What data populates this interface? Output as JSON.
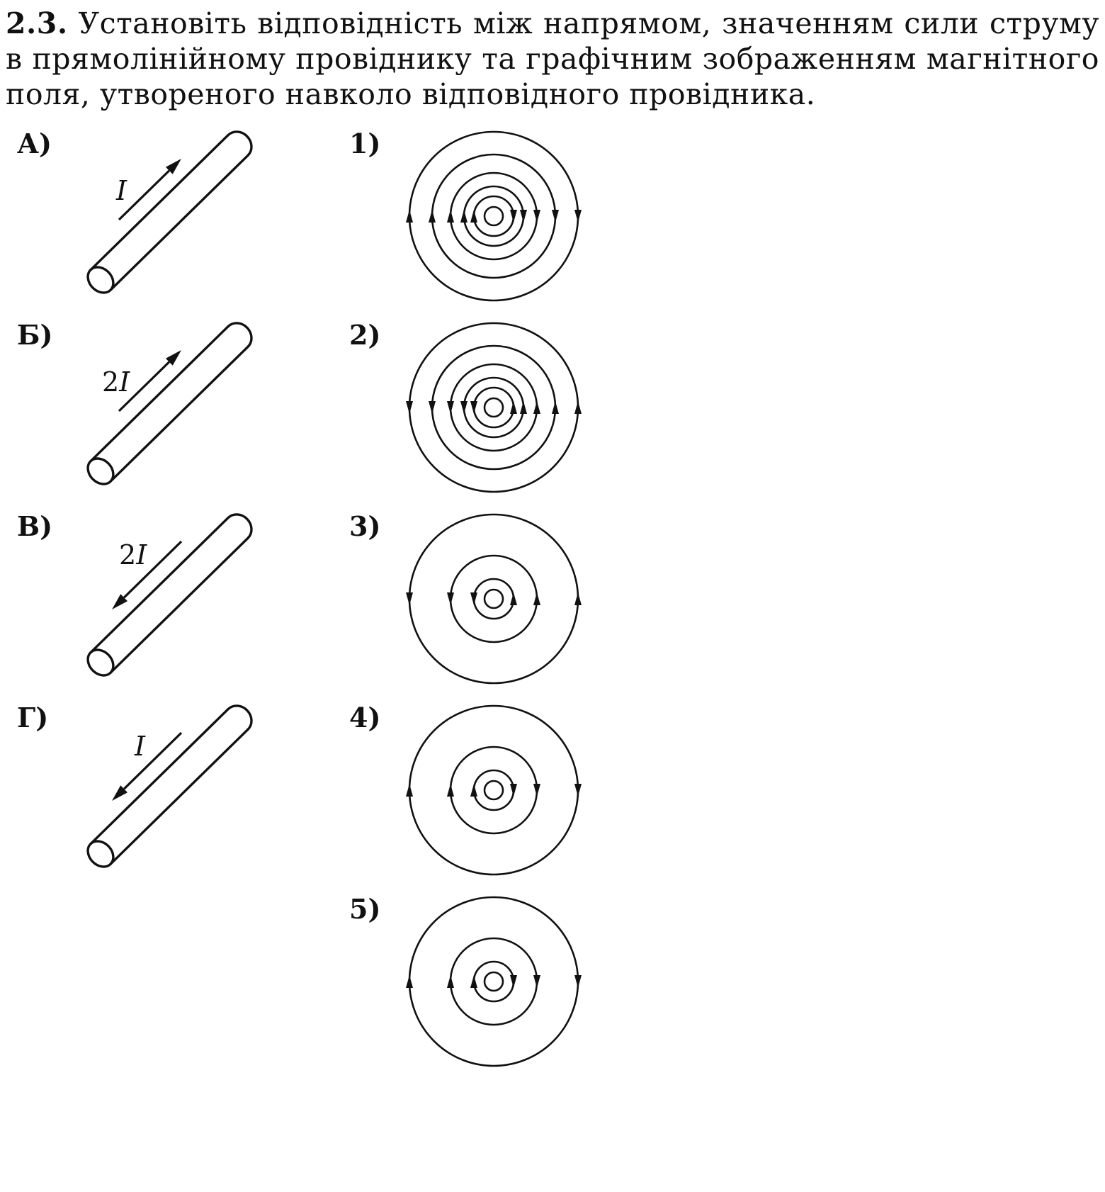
{
  "question": {
    "number": "2.3.",
    "text": "Установіть відповідність між напрямом, значенням сили струму в прямолінійному провіднику та графічним зображенням магнітного поля, утвореного навколо відповідного провідника."
  },
  "left_items": [
    {
      "label": "А)",
      "current": "I",
      "direction": "up"
    },
    {
      "label": "Б)",
      "current": "2I",
      "direction": "up"
    },
    {
      "label": "В)",
      "current": "2I",
      "direction": "down"
    },
    {
      "label": "Г)",
      "current": "I",
      "direction": "down"
    }
  ],
  "right_items": [
    {
      "label": "1)",
      "radii": [
        13,
        28,
        42,
        61,
        87,
        119
      ],
      "left_arrows": "up",
      "right_arrows": "down"
    },
    {
      "label": "2)",
      "radii": [
        13,
        28,
        42,
        61,
        87,
        119
      ],
      "left_arrows": "down",
      "right_arrows": "up"
    },
    {
      "label": "3)",
      "radii": [
        13,
        28,
        61,
        119
      ],
      "left_arrows": "down",
      "right_arrows": "up"
    },
    {
      "label": "4)",
      "radii": [
        13,
        28,
        61,
        119
      ],
      "left_arrows": "up",
      "right_arrows": "down"
    },
    {
      "label": "5)",
      "radii": [
        13,
        28,
        61,
        119
      ],
      "left_arrows": "up",
      "right_arrows": "down"
    }
  ]
}
